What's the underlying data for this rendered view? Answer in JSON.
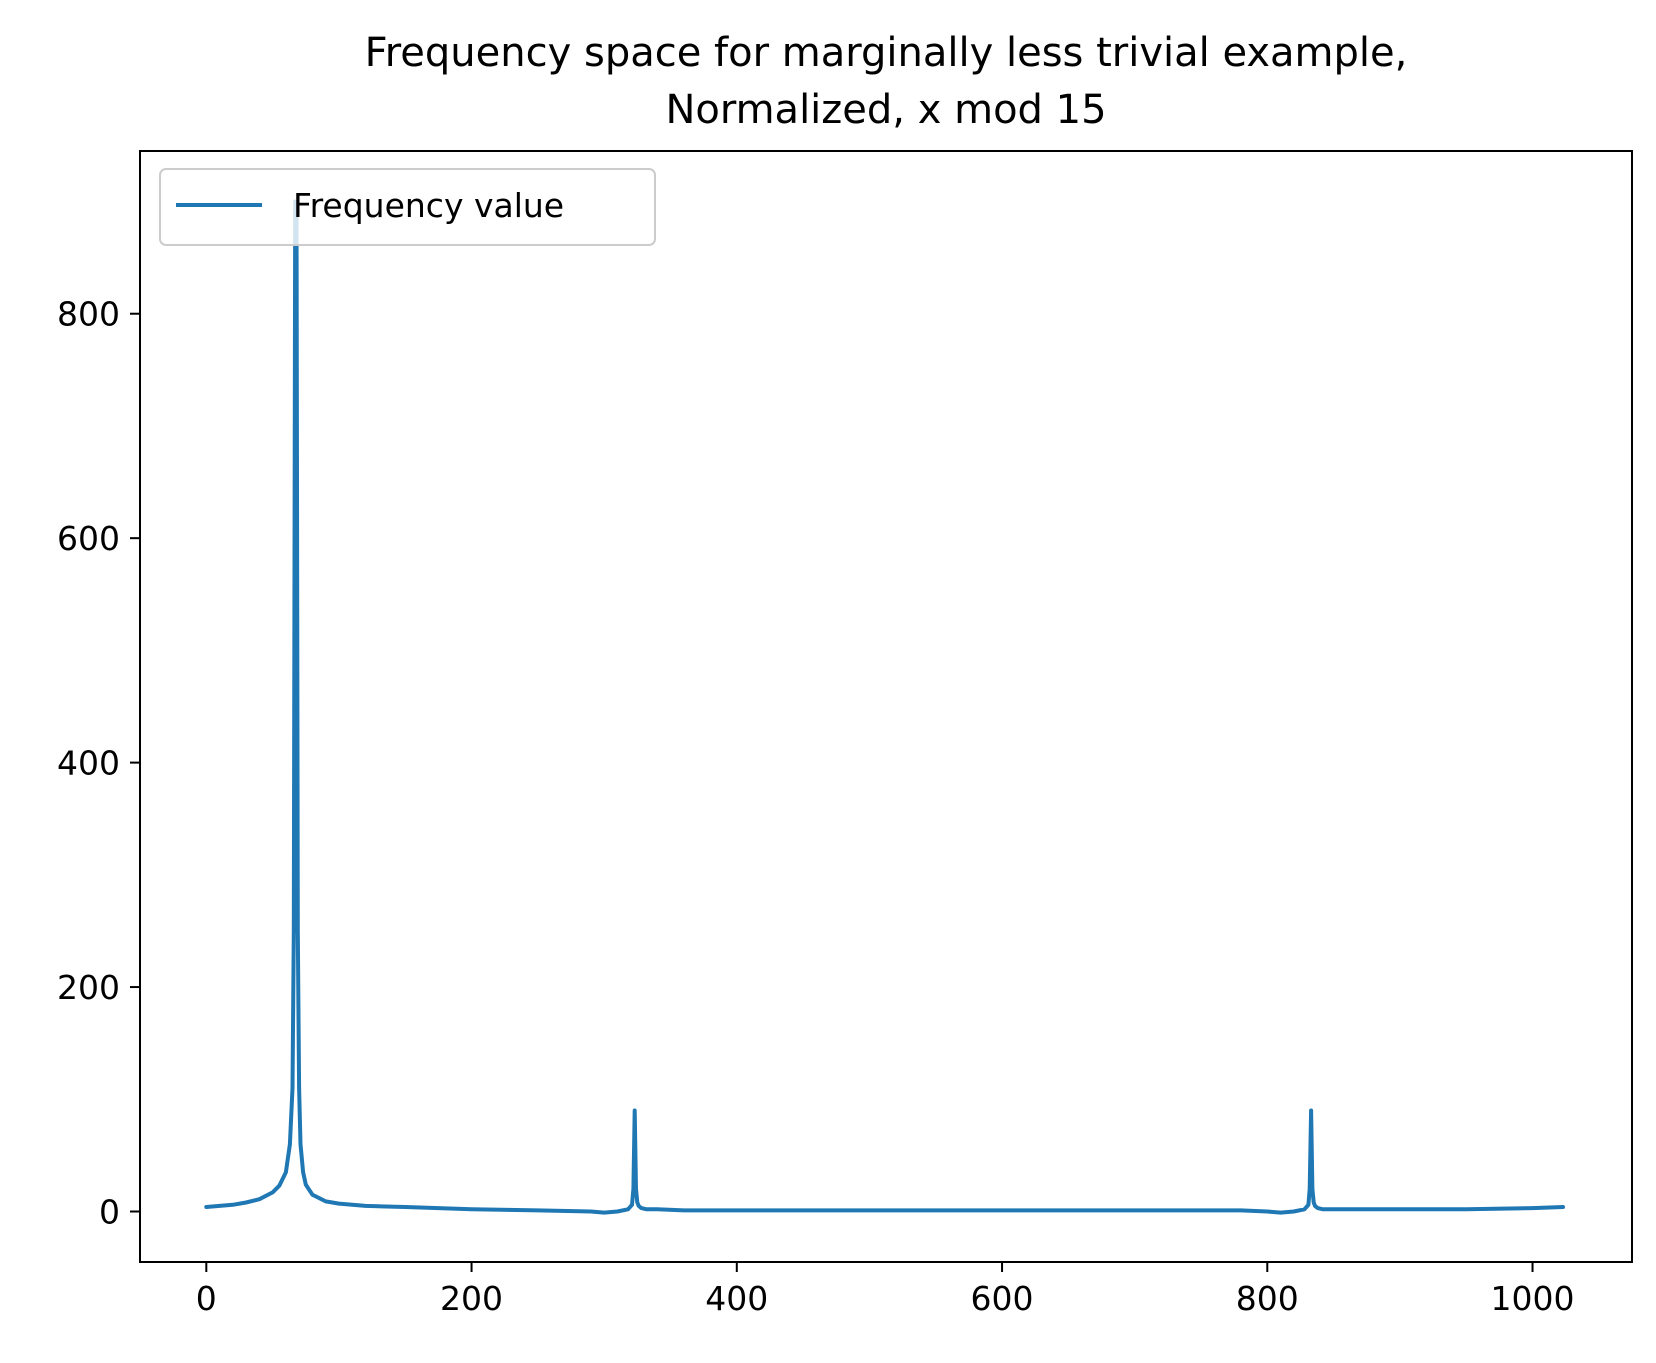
{
  "chart_data": {
    "type": "line",
    "title": "Frequency space for marginally less trivial example,\nNormalized, x mod 15",
    "title_lines": [
      "Frequency space for marginally less trivial example,",
      "Normalized, x mod 15"
    ],
    "xlabel": "",
    "ylabel": "",
    "xlim": [
      -50,
      1075
    ],
    "ylim": [
      -45,
      945
    ],
    "x_ticks": [
      0,
      200,
      400,
      600,
      800,
      1000
    ],
    "y_ticks": [
      0,
      200,
      400,
      600,
      800
    ],
    "x_tick_labels": [
      "0",
      "200",
      "400",
      "600",
      "800",
      "1000"
    ],
    "y_tick_labels": [
      "0",
      "200",
      "400",
      "600",
      "800"
    ],
    "grid": false,
    "legend": {
      "position": "upper-left",
      "entries": [
        "Frequency value"
      ]
    },
    "series": [
      {
        "name": "Frequency value",
        "color": "#1f77b4",
        "x": [
          0,
          10,
          20,
          30,
          40,
          50,
          55,
          60,
          63,
          65,
          66,
          67,
          68,
          69,
          70,
          71,
          73,
          75,
          80,
          90,
          100,
          120,
          150,
          200,
          250,
          290,
          300,
          310,
          318,
          321,
          322,
          323,
          324,
          325,
          326,
          328,
          332,
          340,
          360,
          400,
          500,
          600,
          700,
          780,
          800,
          810,
          820,
          828,
          831,
          832,
          833,
          834,
          835,
          836,
          838,
          842,
          850,
          870,
          900,
          950,
          1000,
          1023
        ],
        "y": [
          4,
          5,
          6,
          8,
          11,
          17,
          23,
          35,
          60,
          110,
          250,
          900,
          900,
          250,
          110,
          60,
          35,
          24,
          15,
          9,
          7,
          5,
          4,
          2,
          1,
          0,
          -1,
          0,
          2,
          6,
          20,
          90,
          20,
          8,
          5,
          3,
          2,
          2,
          1,
          1,
          1,
          1,
          1,
          1,
          0,
          -1,
          0,
          2,
          6,
          20,
          90,
          20,
          8,
          5,
          3,
          2,
          2,
          2,
          2,
          2,
          3,
          4
        ]
      }
    ]
  }
}
